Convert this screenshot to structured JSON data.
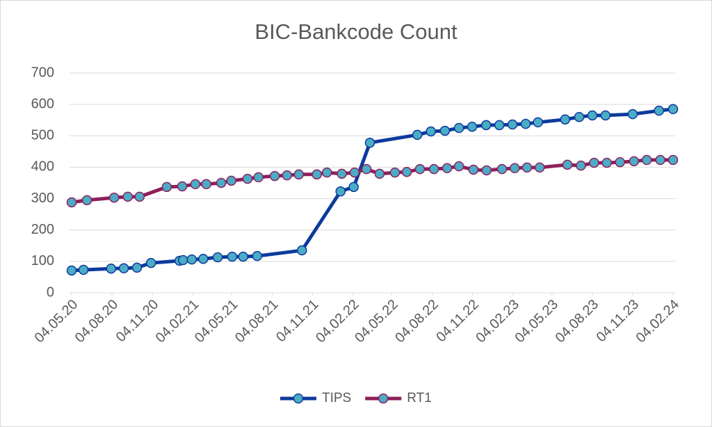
{
  "chart_data": {
    "type": "line",
    "title": "BIC-Bankcode Count",
    "marker_color": "#4bacc6",
    "grid": true,
    "legend": "bottom",
    "xlim": [
      "2020-05-04",
      "2024-02-04"
    ],
    "xticks": [
      {
        "value": "2020-05-04",
        "label": "04.05.20"
      },
      {
        "value": "2020-08-04",
        "label": "04.08.20"
      },
      {
        "value": "2020-11-04",
        "label": "04.11.20"
      },
      {
        "value": "2021-02-04",
        "label": "04.02.21"
      },
      {
        "value": "2021-05-04",
        "label": "04.05.21"
      },
      {
        "value": "2021-08-04",
        "label": "04.08.21"
      },
      {
        "value": "2021-11-04",
        "label": "04.11.21"
      },
      {
        "value": "2022-02-04",
        "label": "04.02.22"
      },
      {
        "value": "2022-05-04",
        "label": "04.05.22"
      },
      {
        "value": "2022-08-04",
        "label": "04.08.22"
      },
      {
        "value": "2022-11-04",
        "label": "04.11.22"
      },
      {
        "value": "2023-02-04",
        "label": "04.02.23"
      },
      {
        "value": "2023-05-04",
        "label": "04.05.23"
      },
      {
        "value": "2023-08-04",
        "label": "04.08.23"
      },
      {
        "value": "2023-11-04",
        "label": "04.11.23"
      },
      {
        "value": "2024-02-04",
        "label": "04.02.24"
      }
    ],
    "ylim": [
      0,
      700
    ],
    "yticks": [
      0,
      100,
      200,
      300,
      400,
      500,
      600,
      700
    ],
    "series": [
      {
        "name": "TIPS",
        "color": "#0d3a9c",
        "x": [
          "2020-05-04",
          "2020-05-31",
          "2020-08-02",
          "2020-08-31",
          "2020-09-30",
          "2020-11-01",
          "2021-01-05",
          "2021-01-13",
          "2021-02-02",
          "2021-02-28",
          "2021-04-02",
          "2021-05-05",
          "2021-05-30",
          "2021-07-01",
          "2021-10-11",
          "2022-01-07",
          "2022-02-06",
          "2022-03-15",
          "2022-07-01",
          "2022-08-01",
          "2022-09-02",
          "2022-10-04",
          "2022-11-03",
          "2022-12-05",
          "2023-01-04",
          "2023-02-03",
          "2023-03-05",
          "2023-04-02",
          "2023-06-03",
          "2023-07-05",
          "2023-08-04",
          "2023-09-03",
          "2023-11-04",
          "2024-01-03",
          "2024-02-04"
        ],
        "values": [
          71,
          73,
          77,
          78,
          80,
          95,
          102,
          104,
          106,
          108,
          113,
          115,
          115,
          117,
          135,
          323,
          337,
          478,
          503,
          514,
          516,
          525,
          529,
          534,
          534,
          536,
          538,
          543,
          552,
          560,
          565,
          565,
          569,
          580,
          585
        ]
      },
      {
        "name": "RT1",
        "color": "#8e1f5b",
        "x": [
          "2020-05-04",
          "2020-06-08",
          "2020-08-09",
          "2020-09-09",
          "2020-10-06",
          "2020-12-07",
          "2021-01-11",
          "2021-02-10",
          "2021-03-07",
          "2021-04-10",
          "2021-05-03",
          "2021-06-09",
          "2021-07-04",
          "2021-08-10",
          "2021-09-07",
          "2021-10-04",
          "2021-11-14",
          "2021-12-07",
          "2022-01-10",
          "2022-02-08",
          "2022-03-07",
          "2022-04-06",
          "2022-05-11",
          "2022-06-07",
          "2022-07-07",
          "2022-08-08",
          "2022-09-07",
          "2022-10-04",
          "2022-11-06",
          "2022-12-06",
          "2023-01-10",
          "2023-02-08",
          "2023-03-08",
          "2023-04-06",
          "2023-06-08",
          "2023-07-09",
          "2023-08-08",
          "2023-09-06",
          "2023-10-06",
          "2023-11-07",
          "2023-12-06",
          "2024-01-06",
          "2024-02-04"
        ],
        "values": [
          288,
          295,
          303,
          306,
          306,
          337,
          339,
          346,
          346,
          350,
          357,
          363,
          368,
          372,
          374,
          377,
          377,
          383,
          379,
          383,
          394,
          379,
          383,
          385,
          394,
          394,
          397,
          403,
          392,
          390,
          394,
          397,
          399,
          399,
          408,
          405,
          414,
          414,
          416,
          419,
          423,
          423,
          423
        ]
      }
    ]
  }
}
